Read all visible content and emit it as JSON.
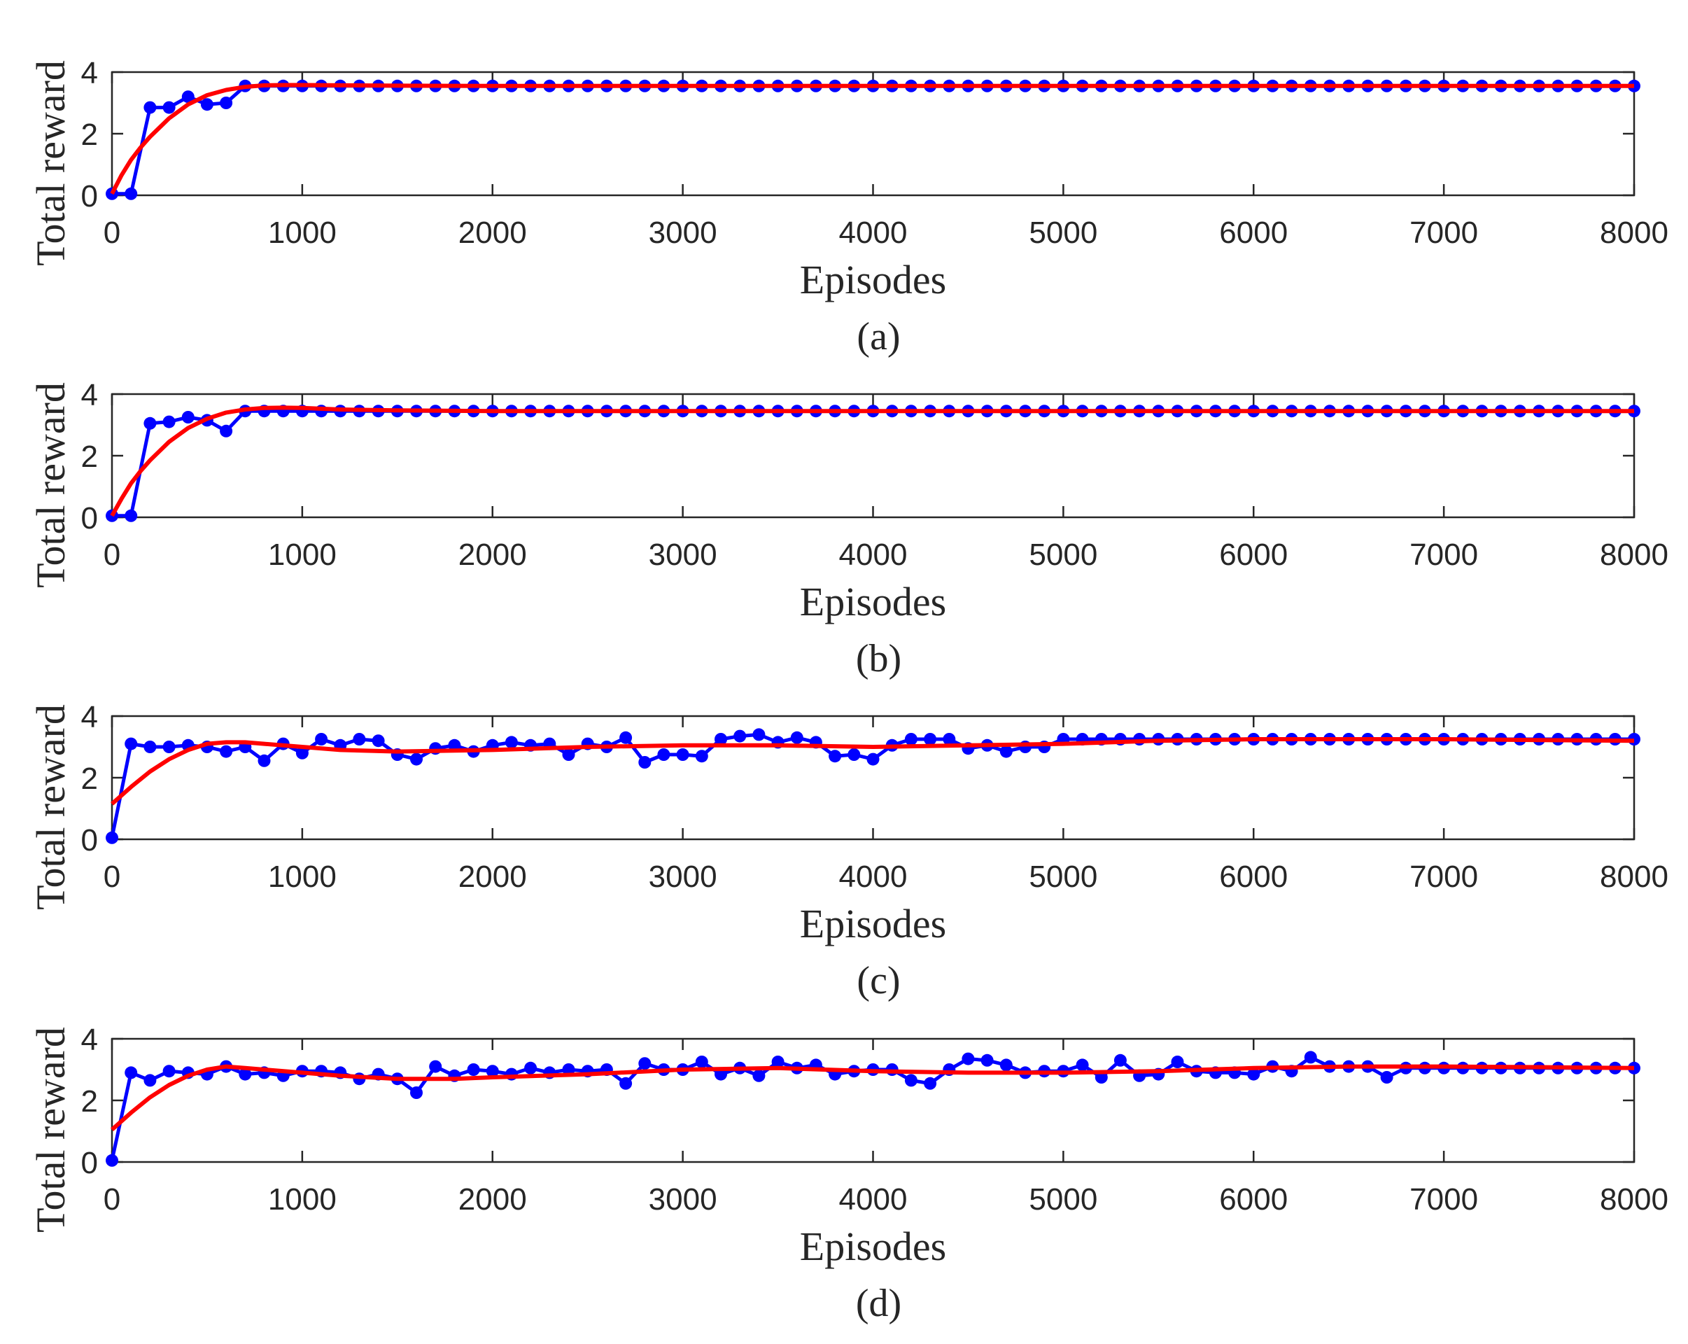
{
  "chart_data": [
    {
      "type": "line",
      "caption": "(a)",
      "xlabel": "Episodes",
      "ylabel": "Total reward",
      "xlim": [
        0,
        8000
      ],
      "ylim": [
        0,
        4
      ],
      "xticks": [
        "0",
        "1000",
        "2000",
        "3000",
        "4000",
        "5000",
        "6000",
        "7000",
        "8000"
      ],
      "yticks": [
        "0",
        "2",
        "4"
      ],
      "grid": false,
      "series": [
        {
          "color": "#0000ff",
          "marker": "circle",
          "x": [
            0,
            100,
            200,
            300,
            400,
            500,
            600,
            700,
            800,
            900,
            1000,
            1100,
            1200,
            1300,
            1400,
            1500,
            1600,
            1700,
            1800,
            1900,
            2000,
            2100,
            2200,
            2300,
            2400,
            2500,
            2600,
            2700,
            2800,
            2900,
            3000,
            3100,
            3200,
            3300,
            3400,
            3500,
            3600,
            3700,
            3800,
            3900,
            4000,
            4100,
            4200,
            4300,
            4400,
            4500,
            4600,
            4700,
            4800,
            4900,
            5000,
            5100,
            5200,
            5300,
            5400,
            5500,
            5600,
            5700,
            5800,
            5900,
            6000,
            6100,
            6200,
            6300,
            6400,
            6500,
            6600,
            6700,
            6800,
            6900,
            7000,
            7100,
            7200,
            7300,
            7400,
            7500,
            7600,
            7700,
            7800,
            7900,
            8000
          ],
          "y": [
            0.05,
            0.05,
            2.85,
            2.85,
            3.2,
            2.95,
            3.0,
            3.55,
            3.55,
            3.55,
            3.55,
            3.55,
            3.55,
            3.55,
            3.55,
            3.55,
            3.55,
            3.55,
            3.55,
            3.55,
            3.55,
            3.55,
            3.55,
            3.55,
            3.55,
            3.55,
            3.55,
            3.55,
            3.55,
            3.55,
            3.55,
            3.55,
            3.55,
            3.55,
            3.55,
            3.55,
            3.55,
            3.55,
            3.55,
            3.55,
            3.55,
            3.55,
            3.55,
            3.55,
            3.55,
            3.55,
            3.55,
            3.55,
            3.55,
            3.55,
            3.55,
            3.55,
            3.55,
            3.55,
            3.55,
            3.55,
            3.55,
            3.55,
            3.55,
            3.55,
            3.55,
            3.55,
            3.55,
            3.55,
            3.55,
            3.55,
            3.55,
            3.55,
            3.55,
            3.55,
            3.55,
            3.55,
            3.55,
            3.55,
            3.55,
            3.55,
            3.55,
            3.55,
            3.55,
            3.55,
            3.55
          ]
        },
        {
          "color": "#ff0000",
          "marker": "none",
          "x": [
            0,
            50,
            100,
            150,
            200,
            250,
            300,
            400,
            500,
            600,
            700,
            800,
            900,
            1000,
            1200,
            1500,
            2000,
            3000,
            4000,
            5000,
            6000,
            7000,
            8000
          ],
          "y": [
            0.05,
            0.65,
            1.15,
            1.55,
            1.9,
            2.2,
            2.5,
            2.95,
            3.25,
            3.42,
            3.52,
            3.57,
            3.58,
            3.58,
            3.57,
            3.56,
            3.55,
            3.55,
            3.55,
            3.55,
            3.55,
            3.55,
            3.55
          ]
        }
      ]
    },
    {
      "type": "line",
      "caption": "(b)",
      "xlabel": "Episodes",
      "ylabel": "Total reward",
      "xlim": [
        0,
        8000
      ],
      "ylim": [
        0,
        4
      ],
      "xticks": [
        "0",
        "1000",
        "2000",
        "3000",
        "4000",
        "5000",
        "6000",
        "7000",
        "8000"
      ],
      "yticks": [
        "0",
        "2",
        "4"
      ],
      "grid": false,
      "series": [
        {
          "color": "#0000ff",
          "marker": "circle",
          "x": [
            0,
            100,
            200,
            300,
            400,
            500,
            600,
            700,
            800,
            900,
            1000,
            1100,
            1200,
            1300,
            1400,
            1500,
            1600,
            1700,
            1800,
            1900,
            2000,
            2100,
            2200,
            2300,
            2400,
            2500,
            2600,
            2700,
            2800,
            2900,
            3000,
            3100,
            3200,
            3300,
            3400,
            3500,
            3600,
            3700,
            3800,
            3900,
            4000,
            4100,
            4200,
            4300,
            4400,
            4500,
            4600,
            4700,
            4800,
            4900,
            5000,
            5100,
            5200,
            5300,
            5400,
            5500,
            5600,
            5700,
            5800,
            5900,
            6000,
            6100,
            6200,
            6300,
            6400,
            6500,
            6600,
            6700,
            6800,
            6900,
            7000,
            7100,
            7200,
            7300,
            7400,
            7500,
            7600,
            7700,
            7800,
            7900,
            8000
          ],
          "y": [
            0.05,
            0.05,
            3.05,
            3.1,
            3.25,
            3.15,
            2.8,
            3.45,
            3.45,
            3.45,
            3.45,
            3.45,
            3.45,
            3.45,
            3.45,
            3.45,
            3.45,
            3.45,
            3.45,
            3.45,
            3.45,
            3.45,
            3.45,
            3.45,
            3.45,
            3.45,
            3.45,
            3.45,
            3.45,
            3.45,
            3.45,
            3.45,
            3.45,
            3.45,
            3.45,
            3.45,
            3.45,
            3.45,
            3.45,
            3.45,
            3.45,
            3.45,
            3.45,
            3.45,
            3.45,
            3.45,
            3.45,
            3.45,
            3.45,
            3.45,
            3.45,
            3.45,
            3.45,
            3.45,
            3.45,
            3.45,
            3.45,
            3.45,
            3.45,
            3.45,
            3.45,
            3.45,
            3.45,
            3.45,
            3.45,
            3.45,
            3.45,
            3.45,
            3.45,
            3.45,
            3.45,
            3.45,
            3.45,
            3.45,
            3.45,
            3.45,
            3.45,
            3.45,
            3.45,
            3.45,
            3.45
          ]
        },
        {
          "color": "#ff0000",
          "marker": "none",
          "x": [
            0,
            50,
            100,
            150,
            200,
            250,
            300,
            400,
            500,
            600,
            700,
            800,
            900,
            1000,
            1200,
            1500,
            2000,
            3000,
            4000,
            5000,
            6000,
            7000,
            8000
          ],
          "y": [
            0.05,
            0.6,
            1.1,
            1.5,
            1.85,
            2.15,
            2.45,
            2.9,
            3.2,
            3.4,
            3.5,
            3.55,
            3.56,
            3.55,
            3.5,
            3.47,
            3.45,
            3.45,
            3.45,
            3.45,
            3.45,
            3.45,
            3.45
          ]
        }
      ]
    },
    {
      "type": "line",
      "caption": "(c)",
      "xlabel": "Episodes",
      "ylabel": "Total reward",
      "xlim": [
        0,
        8000
      ],
      "ylim": [
        0,
        4
      ],
      "xticks": [
        "0",
        "1000",
        "2000",
        "3000",
        "4000",
        "5000",
        "6000",
        "7000",
        "8000"
      ],
      "yticks": [
        "0",
        "2",
        "4"
      ],
      "grid": false,
      "series": [
        {
          "color": "#0000ff",
          "marker": "circle",
          "x": [
            0,
            100,
            200,
            300,
            400,
            500,
            600,
            700,
            800,
            900,
            1000,
            1100,
            1200,
            1300,
            1400,
            1500,
            1600,
            1700,
            1800,
            1900,
            2000,
            2100,
            2200,
            2300,
            2400,
            2500,
            2600,
            2700,
            2800,
            2900,
            3000,
            3100,
            3200,
            3300,
            3400,
            3500,
            3600,
            3700,
            3800,
            3900,
            4000,
            4100,
            4200,
            4300,
            4400,
            4500,
            4600,
            4700,
            4800,
            4900,
            5000,
            5100,
            5200,
            5300,
            5400,
            5500,
            5600,
            5700,
            5800,
            5900,
            6000,
            6100,
            6200,
            6300,
            6400,
            6500,
            6600,
            6700,
            6800,
            6900,
            7000,
            7100,
            7200,
            7300,
            7400,
            7500,
            7600,
            7700,
            7800,
            7900,
            8000
          ],
          "y": [
            0.05,
            3.1,
            3.0,
            3.0,
            3.05,
            3.0,
            2.85,
            3.0,
            2.55,
            3.1,
            2.8,
            3.25,
            3.05,
            3.25,
            3.2,
            2.75,
            2.6,
            2.95,
            3.05,
            2.85,
            3.05,
            3.15,
            3.05,
            3.1,
            2.75,
            3.1,
            3.0,
            3.3,
            2.5,
            2.75,
            2.75,
            2.7,
            3.25,
            3.35,
            3.4,
            3.15,
            3.3,
            3.15,
            2.7,
            2.75,
            2.6,
            3.05,
            3.25,
            3.25,
            3.25,
            2.95,
            3.05,
            2.85,
            3.0,
            3.0,
            3.25,
            3.25,
            3.25,
            3.25,
            3.25,
            3.25,
            3.25,
            3.25,
            3.25,
            3.25,
            3.25,
            3.25,
            3.25,
            3.25,
            3.25,
            3.25,
            3.25,
            3.25,
            3.25,
            3.25,
            3.25,
            3.25,
            3.25,
            3.25,
            3.25,
            3.25,
            3.25,
            3.25,
            3.25,
            3.25,
            3.25
          ]
        },
        {
          "color": "#ff0000",
          "marker": "none",
          "x": [
            0,
            100,
            200,
            300,
            400,
            500,
            600,
            700,
            800,
            1000,
            1200,
            1500,
            2000,
            2500,
            3000,
            3500,
            4000,
            4500,
            5000,
            5500,
            6000,
            6500,
            7000,
            7500,
            8000
          ],
          "y": [
            1.15,
            1.7,
            2.2,
            2.6,
            2.9,
            3.1,
            3.15,
            3.15,
            3.1,
            3.0,
            2.9,
            2.85,
            2.9,
            3.0,
            3.05,
            3.05,
            3.0,
            3.05,
            3.1,
            3.2,
            3.25,
            3.25,
            3.25,
            3.22,
            3.2
          ]
        }
      ]
    },
    {
      "type": "line",
      "caption": "(d)",
      "xlabel": "Episodes",
      "ylabel": "Total reward",
      "xlim": [
        0,
        8000
      ],
      "ylim": [
        0,
        4
      ],
      "xticks": [
        "0",
        "1000",
        "2000",
        "3000",
        "4000",
        "5000",
        "6000",
        "7000",
        "8000"
      ],
      "yticks": [
        "0",
        "2",
        "4"
      ],
      "grid": false,
      "series": [
        {
          "color": "#0000ff",
          "marker": "circle",
          "x": [
            0,
            100,
            200,
            300,
            400,
            500,
            600,
            700,
            800,
            900,
            1000,
            1100,
            1200,
            1300,
            1400,
            1500,
            1600,
            1700,
            1800,
            1900,
            2000,
            2100,
            2200,
            2300,
            2400,
            2500,
            2600,
            2700,
            2800,
            2900,
            3000,
            3100,
            3200,
            3300,
            3400,
            3500,
            3600,
            3700,
            3800,
            3900,
            4000,
            4100,
            4200,
            4300,
            4400,
            4500,
            4600,
            4700,
            4800,
            4900,
            5000,
            5100,
            5200,
            5300,
            5400,
            5500,
            5600,
            5700,
            5800,
            5900,
            6000,
            6100,
            6200,
            6300,
            6400,
            6500,
            6600,
            6700,
            6800,
            6900,
            7000,
            7100,
            7200,
            7300,
            7400,
            7500,
            7600,
            7700,
            7800,
            7900,
            8000
          ],
          "y": [
            0.05,
            2.9,
            2.65,
            2.95,
            2.9,
            2.85,
            3.1,
            2.85,
            2.9,
            2.8,
            2.95,
            2.95,
            2.9,
            2.7,
            2.85,
            2.7,
            2.25,
            3.1,
            2.8,
            3.0,
            2.95,
            2.85,
            3.05,
            2.9,
            3.0,
            2.95,
            3.0,
            2.55,
            3.2,
            3.0,
            3.0,
            3.25,
            2.85,
            3.05,
            2.8,
            3.25,
            3.05,
            3.15,
            2.85,
            2.95,
            3.0,
            3.0,
            2.65,
            2.55,
            3.0,
            3.35,
            3.3,
            3.15,
            2.9,
            2.95,
            2.95,
            3.15,
            2.75,
            3.3,
            2.8,
            2.85,
            3.25,
            2.95,
            2.9,
            2.9,
            2.85,
            3.1,
            2.95,
            3.4,
            3.1,
            3.1,
            3.1,
            2.75,
            3.05,
            3.05,
            3.05,
            3.05,
            3.05,
            3.05,
            3.05,
            3.05,
            3.05,
            3.05,
            3.05,
            3.05,
            3.05
          ]
        },
        {
          "color": "#ff0000",
          "marker": "none",
          "x": [
            0,
            100,
            200,
            300,
            400,
            500,
            600,
            700,
            800,
            1000,
            1200,
            1500,
            1800,
            2000,
            2500,
            3000,
            3500,
            4000,
            4500,
            5000,
            5500,
            6000,
            6500,
            7000,
            7500,
            8000
          ],
          "y": [
            1.05,
            1.6,
            2.1,
            2.5,
            2.8,
            3.0,
            3.1,
            3.05,
            3.0,
            2.9,
            2.8,
            2.7,
            2.7,
            2.75,
            2.85,
            3.0,
            3.05,
            2.95,
            2.9,
            2.9,
            2.95,
            3.05,
            3.1,
            3.1,
            3.08,
            3.05
          ]
        }
      ]
    }
  ]
}
